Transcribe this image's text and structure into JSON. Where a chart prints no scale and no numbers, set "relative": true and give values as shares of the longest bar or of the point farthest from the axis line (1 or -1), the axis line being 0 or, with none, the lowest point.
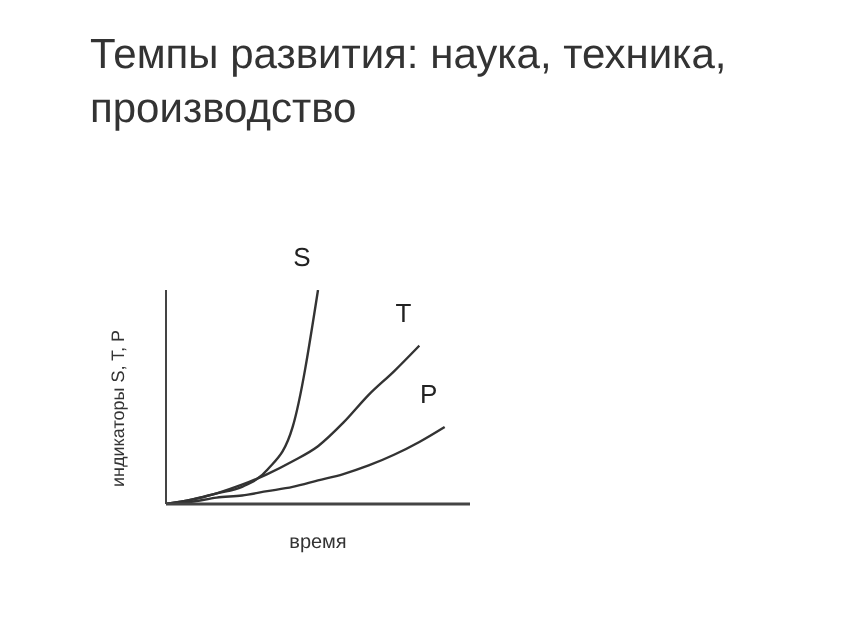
{
  "chart_data": {
    "type": "line",
    "title": "Темпы развития: наука, техника, производство",
    "xlabel": "время",
    "ylabel": "индикаторы S, T, P",
    "relative": true,
    "categories": [
      null,
      null,
      null,
      null,
      null,
      null,
      null,
      null,
      null,
      null,
      null,
      null,
      null
    ],
    "marker": "none",
    "series": [
      {
        "name": "S",
        "color": "#333333",
        "values": [
          0,
          0.02,
          0.05,
          0.08,
          0.16,
          0.36,
          1,
          null,
          null,
          null,
          null,
          null,
          null
        ]
      },
      {
        "name": "T",
        "color": "#333333",
        "values": [
          0,
          0.02,
          0.05,
          0.09,
          0.14,
          0.2,
          0.27,
          0.38,
          0.51,
          0.62,
          0.74,
          null,
          null
        ]
      },
      {
        "name": "P",
        "color": "#333333",
        "values": [
          0,
          0.01,
          0.03,
          0.04,
          0.06,
          0.08,
          0.11,
          0.14,
          0.18,
          0.23,
          0.29,
          0.36,
          null
        ]
      }
    ]
  }
}
